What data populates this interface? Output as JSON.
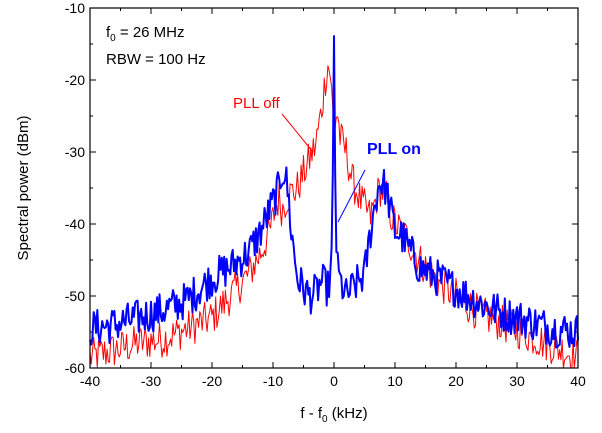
{
  "chart_data": {
    "type": "line",
    "xlabel_main": "f - f",
    "xlabel_sub": "0",
    "xlabel_unit": " (kHz)",
    "ylabel": "Spectral power (dBm)",
    "xlim": [
      -40,
      40
    ],
    "ylim": [
      -60,
      -10
    ],
    "xticks": [
      -40,
      -30,
      -20,
      -10,
      0,
      10,
      20,
      30,
      40
    ],
    "yticks": [
      -60,
      -50,
      -40,
      -30,
      -20,
      -10
    ],
    "annotations": {
      "f0_main": "f",
      "f0_sub": "0",
      "f0_rest": " = 26 MHz",
      "rbw": "RBW = 100 Hz"
    },
    "series": [
      {
        "name": "PLL off",
        "color": "#ff0000",
        "x": [
          -40,
          -36,
          -32,
          -28,
          -24,
          -20,
          -17,
          -14,
          -12,
          -10.5,
          -9.5,
          -9,
          -8.5,
          -7.5,
          -6,
          -4.5,
          -3,
          -2,
          -1.3,
          -1,
          -0.6,
          -0.3,
          0,
          0.5,
          1,
          2,
          3,
          4.5,
          6,
          7.5,
          8.5,
          9,
          10,
          12,
          14,
          17,
          20,
          24,
          28,
          32,
          36,
          40
        ],
        "values": [
          -58.5,
          -57.5,
          -56.5,
          -56,
          -54.5,
          -53,
          -50,
          -47,
          -44,
          -41,
          -37.5,
          -36.5,
          -38,
          -36,
          -35,
          -32,
          -29,
          -24,
          -19,
          -18,
          -19,
          -22,
          -28,
          -24,
          -28,
          -30,
          -34,
          -37,
          -39,
          -35,
          -36,
          -38,
          -40,
          -42,
          -45,
          -48,
          -50,
          -52.5,
          -54,
          -55.5,
          -57,
          -58.5
        ]
      },
      {
        "name": "PLL on",
        "color": "#0000ff",
        "x": [
          -40,
          -36,
          -32,
          -28,
          -24,
          -20,
          -17,
          -14,
          -12,
          -10,
          -9,
          -8.5,
          -8,
          -7.5,
          -7,
          -6,
          -5,
          -4,
          -3,
          -2,
          -1,
          -0.5,
          -0.25,
          0,
          0.25,
          0.5,
          1,
          2,
          3,
          4,
          5,
          6,
          7,
          7.5,
          8,
          8.5,
          9,
          10,
          11,
          12,
          14,
          17,
          20,
          24,
          28,
          32,
          36,
          40
        ],
        "values": [
          -54.5,
          -54,
          -53,
          -52,
          -50.5,
          -47.5,
          -46,
          -44,
          -41,
          -37,
          -35,
          -32.5,
          -33,
          -36,
          -41,
          -47.5,
          -49,
          -50,
          -49.5,
          -48,
          -49,
          -47,
          -38,
          -14,
          -38,
          -46,
          -48,
          -50,
          -49,
          -48,
          -47,
          -41,
          -36,
          -34,
          -34.5,
          -35,
          -37,
          -41,
          -41.5,
          -43,
          -46,
          -47.5,
          -49,
          -51,
          -52.5,
          -53.5,
          -54.5,
          -55
        ]
      }
    ]
  }
}
